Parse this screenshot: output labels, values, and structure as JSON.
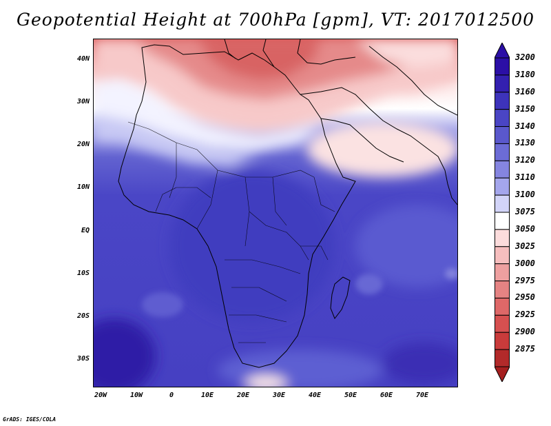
{
  "title": "Geopotential Height at 700hPa [gpm], VT: 2017012500",
  "credit": "GrADS: IGES/COLA",
  "map": {
    "lat_ticks": [
      "40N",
      "30N",
      "20N",
      "10N",
      "EQ",
      "10S",
      "20S",
      "30S"
    ],
    "lon_ticks": [
      "20W",
      "10W",
      "0",
      "10E",
      "20E",
      "30E",
      "40E",
      "50E",
      "60E",
      "70E"
    ],
    "extent": {
      "lon": [
        -22,
        80
      ],
      "lat": [
        -36,
        45
      ]
    }
  },
  "colorbar": {
    "levels": [
      "3200",
      "3180",
      "3160",
      "3150",
      "3140",
      "3130",
      "3120",
      "3110",
      "3100",
      "3075",
      "3050",
      "3025",
      "3000",
      "2975",
      "2950",
      "2925",
      "2900",
      "2875"
    ],
    "colors": [
      "#2b0fa6",
      "#3320b0",
      "#3d33bb",
      "#4a45c4",
      "#5a58cc",
      "#6c6cd6",
      "#8585e0",
      "#a4a6ec",
      "#d2d4f8",
      "#ffffff",
      "#fcdcdc",
      "#f6bebe",
      "#eea0a0",
      "#e58383",
      "#de6868",
      "#d65050",
      "#c93b3b",
      "#b22a2a"
    ],
    "top_color": "#2b0fa6",
    "bottom_color": "#a51f1f"
  }
}
